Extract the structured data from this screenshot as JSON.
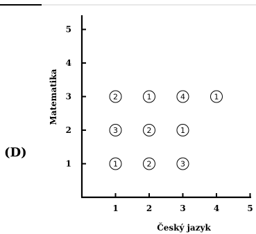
{
  "panel_label": "(D)",
  "chart_data": {
    "type": "scatter",
    "xlabel": "Český jazyk",
    "ylabel": "Matematika",
    "xlim": [
      0,
      5
    ],
    "ylim": [
      0,
      5
    ],
    "x_ticks": [
      "1",
      "2",
      "3",
      "4",
      "5"
    ],
    "y_ticks": [
      "1",
      "2",
      "3",
      "4",
      "5"
    ],
    "grid": false,
    "points": [
      {
        "x": 1,
        "y": 1,
        "count": "1"
      },
      {
        "x": 2,
        "y": 1,
        "count": "2"
      },
      {
        "x": 3,
        "y": 1,
        "count": "3"
      },
      {
        "x": 1,
        "y": 2,
        "count": "3"
      },
      {
        "x": 2,
        "y": 2,
        "count": "2"
      },
      {
        "x": 3,
        "y": 2,
        "count": "1"
      },
      {
        "x": 1,
        "y": 3,
        "count": "2"
      },
      {
        "x": 2,
        "y": 3,
        "count": "1"
      },
      {
        "x": 3,
        "y": 3,
        "count": "4"
      },
      {
        "x": 4,
        "y": 3,
        "count": "1"
      }
    ]
  }
}
